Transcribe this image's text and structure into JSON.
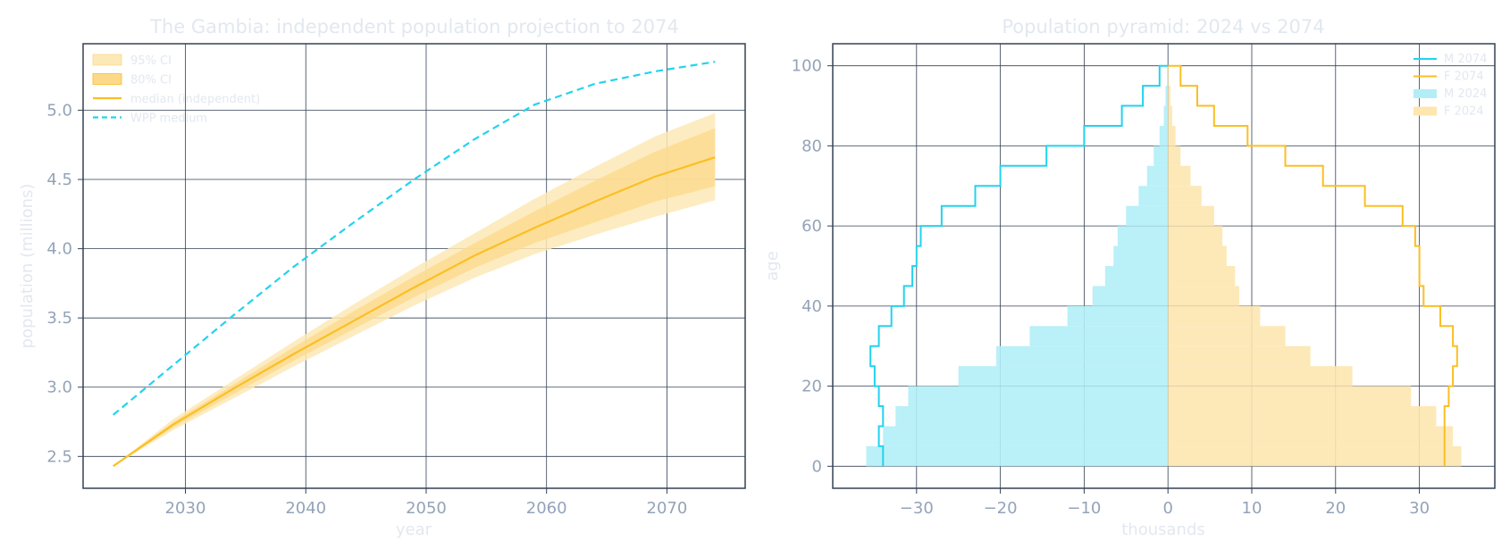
{
  "colors": {
    "text_light": "#e2e8f0",
    "tick_text": "#94a3b8",
    "grid": "#334155",
    "spine": "#334155",
    "amber": "#fbbf24",
    "cyan": "#22d3ee",
    "band95": "#fde9b6",
    "band80": "#fcd98a",
    "male_bar": "#b3eef7",
    "female_bar": "#fde6b0"
  },
  "chart_data": [
    {
      "type": "line",
      "title": "The Gambia: independent population projection to 2074",
      "xlabel": "year",
      "ylabel": "population (millions)",
      "xlim": [
        2021.5,
        2076.5
      ],
      "ylim": [
        2.27,
        5.48
      ],
      "xticks": [
        2030,
        2040,
        2050,
        2060,
        2070
      ],
      "yticks": [
        2.5,
        3.0,
        3.5,
        4.0,
        4.5,
        5.0
      ],
      "ytick_labels": [
        "2.5",
        "3.0",
        "3.5",
        "4.0",
        "4.5",
        "5.0"
      ],
      "grid": true,
      "legend": {
        "position": "upper-left",
        "entries": [
          {
            "label": "95% CI",
            "kind": "band95"
          },
          {
            "label": "80% CI",
            "kind": "band80"
          },
          {
            "label": "median (independent)",
            "kind": "median"
          },
          {
            "label": "WPP medium",
            "kind": "wpp"
          }
        ]
      },
      "x": [
        2024,
        2029,
        2034,
        2039,
        2044,
        2049,
        2054,
        2059,
        2064,
        2069,
        2074
      ],
      "median": [
        2.43,
        2.73,
        2.99,
        3.24,
        3.48,
        3.72,
        3.95,
        4.15,
        4.34,
        4.52,
        4.66
      ],
      "ci80": {
        "lower": [
          2.43,
          2.71,
          2.95,
          3.19,
          3.42,
          3.65,
          3.86,
          4.04,
          4.19,
          4.34,
          4.45
        ],
        "upper": [
          2.43,
          2.75,
          3.02,
          3.29,
          3.55,
          3.8,
          4.04,
          4.27,
          4.49,
          4.7,
          4.87
        ]
      },
      "ci95": {
        "lower": [
          2.43,
          2.69,
          2.92,
          3.15,
          3.37,
          3.59,
          3.79,
          3.96,
          4.1,
          4.23,
          4.35
        ],
        "upper": [
          2.43,
          2.77,
          3.05,
          3.33,
          3.6,
          3.86,
          4.11,
          4.36,
          4.59,
          4.81,
          4.98
        ]
      },
      "wpp_medium": [
        2.8,
        3.16,
        3.52,
        3.87,
        4.19,
        4.5,
        4.79,
        5.04,
        5.19,
        5.28,
        5.35
      ]
    },
    {
      "type": "bar",
      "title": "Population pyramid: 2024 vs 2074",
      "xlabel": "thousands",
      "ylabel": "age",
      "xlim": [
        -40,
        39
      ],
      "ylim": [
        -5.5,
        105.5
      ],
      "xticks": [
        -30,
        -20,
        -10,
        0,
        10,
        20,
        30
      ],
      "xtick_labels": [
        "−30",
        "−20",
        "−10",
        "0",
        "10",
        "20",
        "30"
      ],
      "yticks": [
        0,
        20,
        40,
        60,
        80,
        100
      ],
      "grid": true,
      "legend": {
        "position": "upper-right",
        "entries": [
          {
            "label": "M 2074",
            "kind": "mline"
          },
          {
            "label": "F 2074",
            "kind": "fline"
          },
          {
            "label": "M 2024",
            "kind": "mbar"
          },
          {
            "label": "F 2024",
            "kind": "fbar"
          }
        ]
      },
      "ages": [
        0,
        5,
        10,
        15,
        20,
        25,
        30,
        35,
        40,
        45,
        50,
        55,
        60,
        65,
        70,
        75,
        80,
        85,
        90,
        95,
        100
      ],
      "male_2024": [
        -36.0,
        -34.0,
        -32.5,
        -31.0,
        -25.0,
        -20.5,
        -16.5,
        -12.0,
        -9.0,
        -7.5,
        -6.5,
        -6.0,
        -5.0,
        -3.5,
        -2.5,
        -1.7,
        -1.0,
        -0.5,
        -0.3,
        -0.1,
        0.0
      ],
      "female_2024": [
        35.0,
        34.0,
        32.0,
        29.0,
        22.0,
        17.0,
        14.0,
        11.0,
        8.5,
        8.0,
        7.0,
        6.5,
        5.5,
        4.0,
        2.7,
        1.5,
        0.9,
        0.5,
        0.3,
        0.1,
        0.0
      ],
      "male_2074": [
        -34.0,
        -34.5,
        -34.0,
        -34.5,
        -35.0,
        -35.5,
        -34.5,
        -33.0,
        -31.5,
        -30.5,
        -30.0,
        -29.5,
        -27.0,
        -23.0,
        -20.0,
        -14.5,
        -10.0,
        -5.5,
        -3.0,
        -1.0,
        0.0
      ],
      "female_2074": [
        33.0,
        33.0,
        33.0,
        33.5,
        34.0,
        34.5,
        34.0,
        32.5,
        30.5,
        30.0,
        30.0,
        29.5,
        28.0,
        23.5,
        18.5,
        14.0,
        9.5,
        5.5,
        3.5,
        1.5,
        0.0
      ]
    }
  ]
}
